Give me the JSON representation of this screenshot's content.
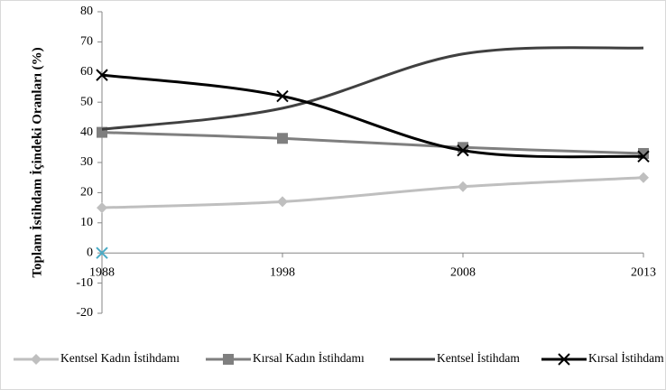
{
  "chart_data": {
    "type": "line",
    "y_label": "Toplam İstihdam İçindeki Oranları (%)",
    "categories": [
      "1988",
      "1998",
      "2008",
      "2013"
    ],
    "ylim": [
      -20,
      80
    ],
    "yticks": [
      -20,
      -10,
      0,
      10,
      20,
      30,
      40,
      50,
      60,
      70,
      80
    ],
    "series": [
      {
        "name": "Kentsel Kadın İstihdamı",
        "color": "#bfbfbf",
        "marker": "diamond",
        "values": [
          15,
          17,
          22,
          25
        ]
      },
      {
        "name": "Kırsal Kadın İstihdamı",
        "color": "#7f7f7f",
        "marker": "square",
        "values": [
          40,
          38,
          35,
          33
        ]
      },
      {
        "name": "Kentsel İstihdam",
        "color": "#404040",
        "marker": "none",
        "values": [
          41,
          48,
          66,
          68
        ]
      },
      {
        "name": "Kırsal İstihdam",
        "color": "#000000",
        "marker": "x",
        "values": [
          59,
          52,
          34,
          32
        ]
      },
      {
        "color": "#4bacc6",
        "marker": "x",
        "values": [
          0,
          null,
          null,
          null
        ]
      }
    ]
  }
}
